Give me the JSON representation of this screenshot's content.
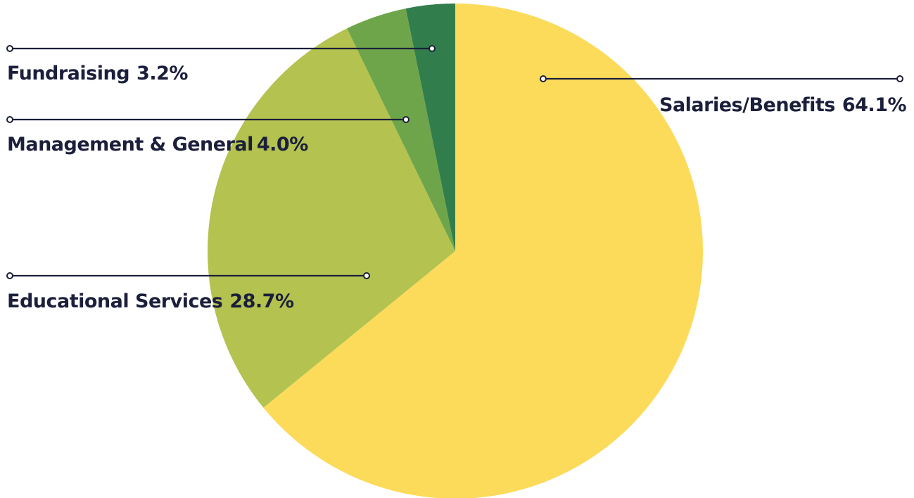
{
  "chart_data": {
    "type": "pie",
    "title": "",
    "slices": [
      {
        "label": "Salaries/Benefits",
        "value": 64.1,
        "display": "64.1%",
        "color": "#fcdb5b"
      },
      {
        "label": "Educational Services",
        "value": 28.7,
        "display": "28.7%",
        "color": "#b4c24f"
      },
      {
        "label": "Management & General",
        "value": 4.0,
        "display": "4.0%",
        "color": "#6ea54a"
      },
      {
        "label": "Fundraising",
        "value": 3.2,
        "display": "3.2%",
        "color": "#327d4c"
      }
    ],
    "label_color": "#1b1f3b",
    "start": "12 o'clock",
    "direction": "clockwise",
    "legend": "callout lines"
  }
}
